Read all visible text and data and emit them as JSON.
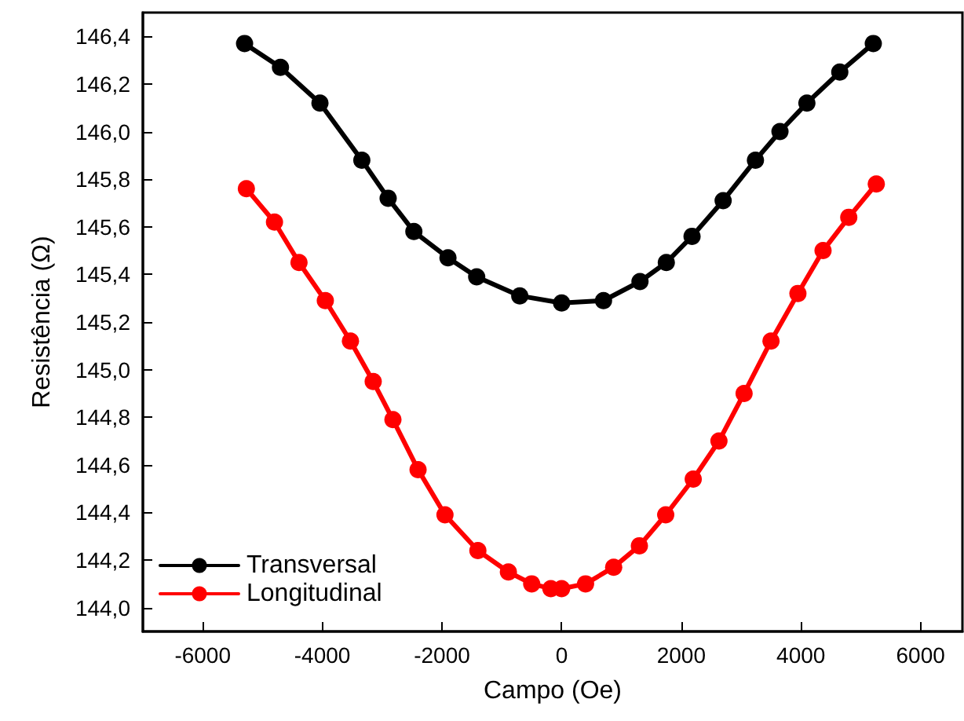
{
  "chart_data": {
    "type": "line",
    "xlabel": "Campo (Oe)",
    "ylabel": "Resistência (Ω)",
    "xlim": [
      -7000,
      6700
    ],
    "xticks": [
      -6000,
      -4000,
      -2000,
      0,
      2000,
      4000,
      6000
    ],
    "ylim": [
      143.9,
      146.5
    ],
    "yticks": [
      {
        "value": 144.0,
        "label": "144,0"
      },
      {
        "value": 144.2,
        "label": "144,2"
      },
      {
        "value": 144.4,
        "label": "144,4"
      },
      {
        "value": 144.6,
        "label": "144,6"
      },
      {
        "value": 144.8,
        "label": "144,8"
      },
      {
        "value": 145.0,
        "label": "145,0"
      },
      {
        "value": 145.2,
        "label": "145,2"
      },
      {
        "value": 145.4,
        "label": "145,4"
      },
      {
        "value": 145.6,
        "label": "145,6"
      },
      {
        "value": 145.8,
        "label": "145,8"
      },
      {
        "value": 146.0,
        "label": "146,0"
      },
      {
        "value": 146.2,
        "label": "146,2"
      },
      {
        "value": 146.4,
        "label": "146,4"
      }
    ],
    "grid": false,
    "legend": "bottom left",
    "marker": "circle",
    "series": [
      {
        "name": "Transversal",
        "color": "#000000",
        "x": [
          -5300,
          -4700,
          -4040,
          -3340,
          -2900,
          -2470,
          -1900,
          -1420,
          -700,
          0,
          700,
          1310,
          1750,
          2180,
          2700,
          3240,
          3650,
          4100,
          4650,
          5210
        ],
        "values": [
          146.37,
          146.27,
          146.12,
          145.88,
          145.72,
          145.58,
          145.47,
          145.39,
          145.31,
          145.28,
          145.29,
          145.37,
          145.45,
          145.56,
          145.71,
          145.88,
          146.0,
          146.12,
          146.25,
          146.37
        ]
      },
      {
        "name": "Longitudinal",
        "color": "#ff0000",
        "x": [
          -5270,
          -4800,
          -4390,
          -3950,
          -3530,
          -3150,
          -2820,
          -2400,
          -1950,
          -1400,
          -890,
          -500,
          -180,
          0,
          400,
          870,
          1300,
          1740,
          2200,
          2630,
          3050,
          3500,
          3950,
          4370,
          4800,
          5260
        ],
        "values": [
          145.76,
          145.62,
          145.45,
          145.29,
          145.12,
          144.95,
          144.79,
          144.58,
          144.39,
          144.24,
          144.15,
          144.1,
          144.08,
          144.08,
          144.1,
          144.17,
          144.26,
          144.39,
          144.54,
          144.7,
          144.9,
          145.12,
          145.32,
          145.5,
          145.64,
          145.78
        ]
      }
    ]
  }
}
